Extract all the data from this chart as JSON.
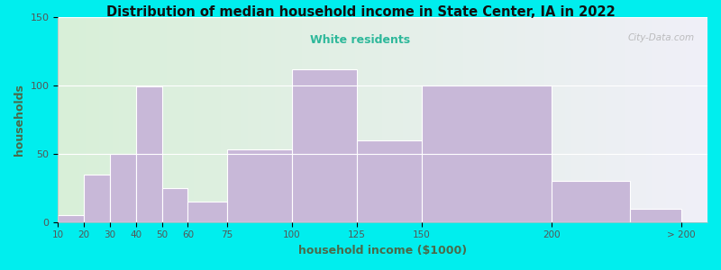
{
  "title": "Distribution of median household income in State Center, IA in 2022",
  "subtitle": "White residents",
  "xlabel": "household income ($1000)",
  "ylabel": "households",
  "bg_outer": "#00EEEE",
  "bg_inner_left": "#d8efd8",
  "bg_inner_right": "#f0f0f8",
  "bar_color": "#c8b8d8",
  "bar_edge_color": "#ffffff",
  "title_color": "#111111",
  "subtitle_color": "#2db89a",
  "axis_label_color": "#4a6a4a",
  "tick_label_color": "#555555",
  "watermark": "City-Data.com",
  "tick_positions": [
    10,
    20,
    30,
    40,
    50,
    60,
    75,
    100,
    125,
    150,
    200,
    250
  ],
  "tick_labels": [
    "10",
    "20",
    "30",
    "40",
    "50",
    "60",
    "75",
    "100",
    "125",
    "150",
    "200",
    "> 200"
  ],
  "bar_lefts": [
    10,
    20,
    30,
    40,
    50,
    60,
    75,
    100,
    125,
    150,
    200,
    230
  ],
  "bar_widths": [
    10,
    10,
    10,
    10,
    10,
    15,
    25,
    25,
    25,
    50,
    30,
    20
  ],
  "values": [
    5,
    35,
    50,
    99,
    25,
    15,
    53,
    112,
    60,
    100,
    30,
    10
  ],
  "ylim": [
    0,
    150
  ],
  "yticks": [
    0,
    50,
    100,
    150
  ],
  "xlim": [
    10,
    260
  ]
}
